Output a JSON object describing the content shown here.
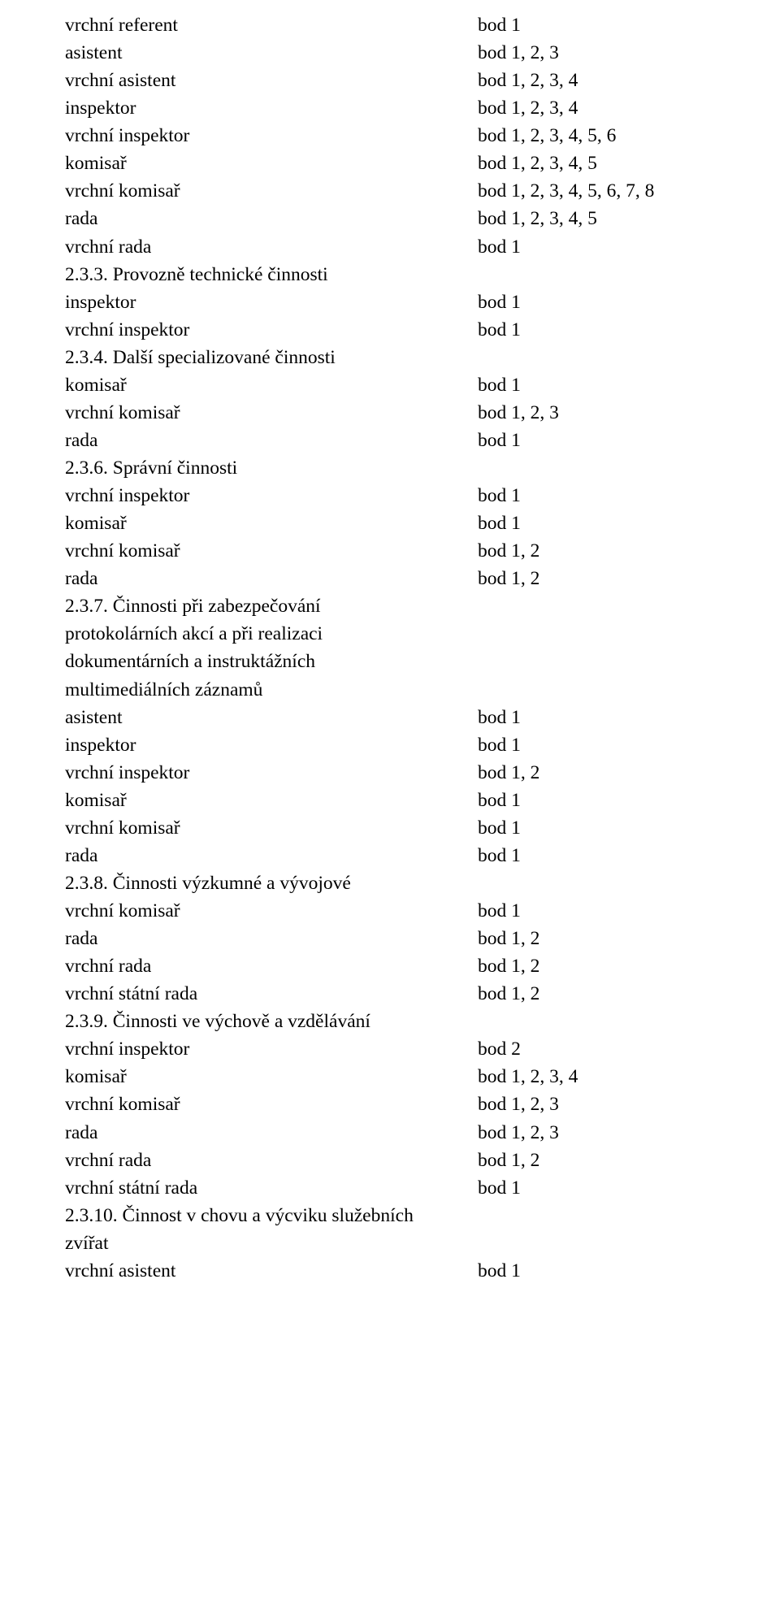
{
  "text_color": "#000000",
  "background_color": "#ffffff",
  "font_family": "Times New Roman",
  "font_size_pt": 18,
  "rows": [
    {
      "left": "vrchní referent",
      "right": "bod 1"
    },
    {
      "left": "asistent",
      "right": "bod 1, 2, 3"
    },
    {
      "left": "vrchní asistent",
      "right": "bod 1, 2, 3, 4"
    },
    {
      "left": "inspektor",
      "right": "bod 1, 2, 3, 4"
    },
    {
      "left": "vrchní inspektor",
      "right": "bod 1, 2, 3, 4, 5, 6"
    },
    {
      "left": "komisař",
      "right": "bod 1, 2, 3, 4, 5"
    },
    {
      "left": "vrchní komisař",
      "right": "bod 1, 2, 3, 4, 5, 6, 7, 8"
    },
    {
      "left": "rada",
      "right": "bod 1, 2, 3, 4, 5"
    },
    {
      "left": "vrchní rada",
      "right": "bod 1"
    },
    {
      "left": "2.3.3. Provozně technické činnosti",
      "right": ""
    },
    {
      "left": "inspektor",
      "right": "bod 1"
    },
    {
      "left": "vrchní inspektor",
      "right": "bod 1"
    },
    {
      "left": "2.3.4. Další specializované činnosti",
      "right": ""
    },
    {
      "left": "komisař",
      "right": "bod 1"
    },
    {
      "left": "vrchní komisař",
      "right": "bod 1, 2, 3"
    },
    {
      "left": "rada",
      "right": "bod 1"
    },
    {
      "left": "2.3.6. Správní činnosti",
      "right": ""
    },
    {
      "left": "vrchní inspektor",
      "right": "bod 1"
    },
    {
      "left": "komisař",
      "right": "bod 1"
    },
    {
      "left": "vrchní komisař",
      "right": "bod 1, 2"
    },
    {
      "left": "rada",
      "right": "bod 1, 2"
    },
    {
      "left": "2.3.7. Činnosti při zabezpečování",
      "right": ""
    },
    {
      "left": "protokolárních akcí a při realizaci",
      "right": ""
    },
    {
      "left": "dokumentárních a instruktážních",
      "right": ""
    },
    {
      "left": "multimediálních záznamů",
      "right": ""
    },
    {
      "left": "asistent",
      "right": "bod 1"
    },
    {
      "left": "inspektor",
      "right": "bod 1"
    },
    {
      "left": "vrchní inspektor",
      "right": "bod 1, 2"
    },
    {
      "left": "komisař",
      "right": "bod 1"
    },
    {
      "left": "vrchní komisař",
      "right": "bod 1"
    },
    {
      "left": "rada",
      "right": "bod 1"
    },
    {
      "left": "2.3.8. Činnosti výzkumné a vývojové",
      "right": ""
    },
    {
      "left": "vrchní komisař",
      "right": "bod 1"
    },
    {
      "left": "rada",
      "right": "bod 1, 2"
    },
    {
      "left": "vrchní rada",
      "right": "bod 1, 2"
    },
    {
      "left": "vrchní státní rada",
      "right": "bod 1, 2"
    },
    {
      "left": "2.3.9. Činnosti ve výchově a vzdělávání",
      "right": ""
    },
    {
      "left": "vrchní inspektor",
      "right": "bod 2"
    },
    {
      "left": "komisař",
      "right": "bod 1, 2, 3, 4"
    },
    {
      "left": "vrchní komisař",
      "right": "bod 1, 2, 3"
    },
    {
      "left": "rada",
      "right": "bod 1, 2, 3"
    },
    {
      "left": "vrchní rada",
      "right": "bod 1, 2"
    },
    {
      "left": "vrchní státní rada",
      "right": "bod 1"
    },
    {
      "left": "2.3.10. Činnost v chovu a výcviku služebních",
      "right": ""
    },
    {
      "left": "zvířat",
      "right": ""
    },
    {
      "left": "vrchní asistent",
      "right": "bod 1"
    }
  ]
}
